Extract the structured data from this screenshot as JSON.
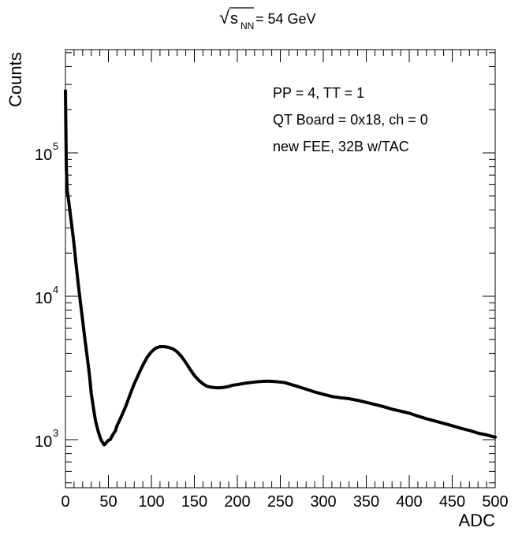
{
  "chart_data": {
    "type": "line",
    "title": {
      "sqrt_symbol": "√",
      "radicand_main": "s",
      "radicand_sub": "NN",
      "rest": " = 54 GeV"
    },
    "xlabel": "ADC",
    "ylabel": "Counts",
    "xlim": [
      0,
      500
    ],
    "ylim": [
      500,
      500000
    ],
    "yscale": "log",
    "grid": false,
    "x_ticks": [
      0,
      50,
      100,
      150,
      200,
      250,
      300,
      350,
      400,
      450,
      500
    ],
    "x_tick_labels": [
      "0",
      "50",
      "100",
      "150",
      "200",
      "250",
      "300",
      "350",
      "400",
      "450",
      "500"
    ],
    "y_ticks": [
      {
        "value": 1000,
        "base": "10",
        "exp": "3"
      },
      {
        "value": 10000,
        "base": "10",
        "exp": "4"
      },
      {
        "value": 100000,
        "base": "10",
        "exp": "5"
      }
    ],
    "annotations": [
      "PP = 4, TT = 1",
      "QT Board = 0x18, ch = 0",
      "new FEE, 32B w/TAC"
    ],
    "series_color": "#000000",
    "series": [
      {
        "x": [
          0,
          1,
          2,
          4,
          6,
          8,
          10,
          12,
          15,
          18,
          20,
          22,
          25,
          28,
          30,
          33,
          35,
          38,
          40,
          42,
          44,
          45,
          46,
          48,
          50,
          52,
          55,
          58,
          60,
          65,
          70,
          75,
          80,
          85,
          90,
          95,
          100,
          105,
          110,
          115,
          120,
          125,
          130,
          135,
          140,
          145,
          150,
          155,
          160,
          165,
          170,
          175,
          180,
          185,
          190,
          195,
          200,
          205,
          210,
          215,
          220,
          225,
          230,
          235,
          240,
          245,
          250,
          255,
          260,
          270,
          280,
          290,
          300,
          310,
          320,
          330,
          340,
          350,
          360,
          370,
          380,
          390,
          400,
          410,
          420,
          430,
          440,
          450,
          460,
          470,
          480,
          490,
          500
        ],
        "y": [
          270000,
          80000,
          55000,
          45000,
          36000,
          29000,
          23000,
          17500,
          12000,
          8500,
          6800,
          5400,
          3900,
          2800,
          2100,
          1600,
          1350,
          1150,
          1050,
          980,
          940,
          920,
          930,
          960,
          990,
          1000,
          1080,
          1150,
          1250,
          1450,
          1700,
          2050,
          2450,
          2850,
          3300,
          3750,
          4100,
          4350,
          4450,
          4450,
          4400,
          4300,
          4100,
          3800,
          3450,
          3100,
          2800,
          2600,
          2450,
          2350,
          2320,
          2300,
          2300,
          2320,
          2350,
          2400,
          2420,
          2450,
          2480,
          2500,
          2520,
          2540,
          2550,
          2560,
          2550,
          2540,
          2520,
          2500,
          2450,
          2350,
          2250,
          2150,
          2070,
          2000,
          1960,
          1930,
          1880,
          1820,
          1760,
          1700,
          1630,
          1580,
          1530,
          1460,
          1400,
          1350,
          1300,
          1250,
          1200,
          1160,
          1110,
          1080,
          1040
        ]
      }
    ]
  }
}
